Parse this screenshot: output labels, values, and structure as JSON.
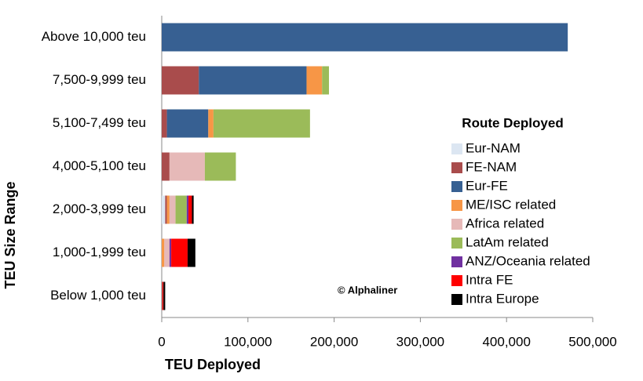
{
  "chart_data": {
    "type": "stacked-barh",
    "categories": [
      "Above 10,000 teu",
      "7,500-9,999 teu",
      "5,100-7,499 teu",
      "4,000-5,100 teu",
      "2,000-3,999 teu",
      "1,000-1,999 teu",
      "Below 1,000 teu"
    ],
    "series": [
      {
        "name": "Eur-NAM",
        "color": "#dce6f2",
        "values": [
          0,
          0,
          0,
          0,
          4000,
          0,
          0
        ]
      },
      {
        "name": "FE-NAM",
        "color": "#a94c4c",
        "values": [
          0,
          43000,
          6000,
          9000,
          2000,
          0,
          1000
        ]
      },
      {
        "name": "Eur-FE",
        "color": "#376092",
        "values": [
          471000,
          125000,
          48000,
          0,
          0,
          0,
          0
        ]
      },
      {
        "name": "ME/ISC related",
        "color": "#f79646",
        "values": [
          0,
          18000,
          6000,
          0,
          3000,
          3000,
          0
        ]
      },
      {
        "name": "Africa related",
        "color": "#e6b9b8",
        "values": [
          0,
          0,
          0,
          41000,
          7000,
          6000,
          0
        ]
      },
      {
        "name": "LatAm related",
        "color": "#9bbb59",
        "values": [
          0,
          8000,
          112000,
          36000,
          13000,
          0,
          0
        ]
      },
      {
        "name": "ANZ/Oceania related",
        "color": "#7030a0",
        "values": [
          0,
          0,
          0,
          0,
          2000,
          2000,
          0
        ]
      },
      {
        "name": "Intra FE",
        "color": "#ff0000",
        "values": [
          0,
          0,
          0,
          0,
          4000,
          19000,
          1000
        ]
      },
      {
        "name": "Intra Europe",
        "color": "#000000",
        "values": [
          0,
          0,
          0,
          0,
          2000,
          9000,
          2000
        ]
      }
    ],
    "xlim": [
      0,
      500000
    ],
    "xticks": [
      0,
      {
        "value": 100000,
        "label": "100,000"
      },
      {
        "value": 200000,
        "label": "200,000"
      },
      {
        "value": 300000,
        "label": "300,000"
      },
      {
        "value": 400000,
        "label": "400,000"
      },
      {
        "value": 500000,
        "label": "500,000"
      }
    ],
    "x_label": "TEU Deployed",
    "y_label": "TEU Size Range",
    "legend_title": "Route Deployed",
    "legend_position": "right",
    "annotation": "© Alphaliner"
  }
}
